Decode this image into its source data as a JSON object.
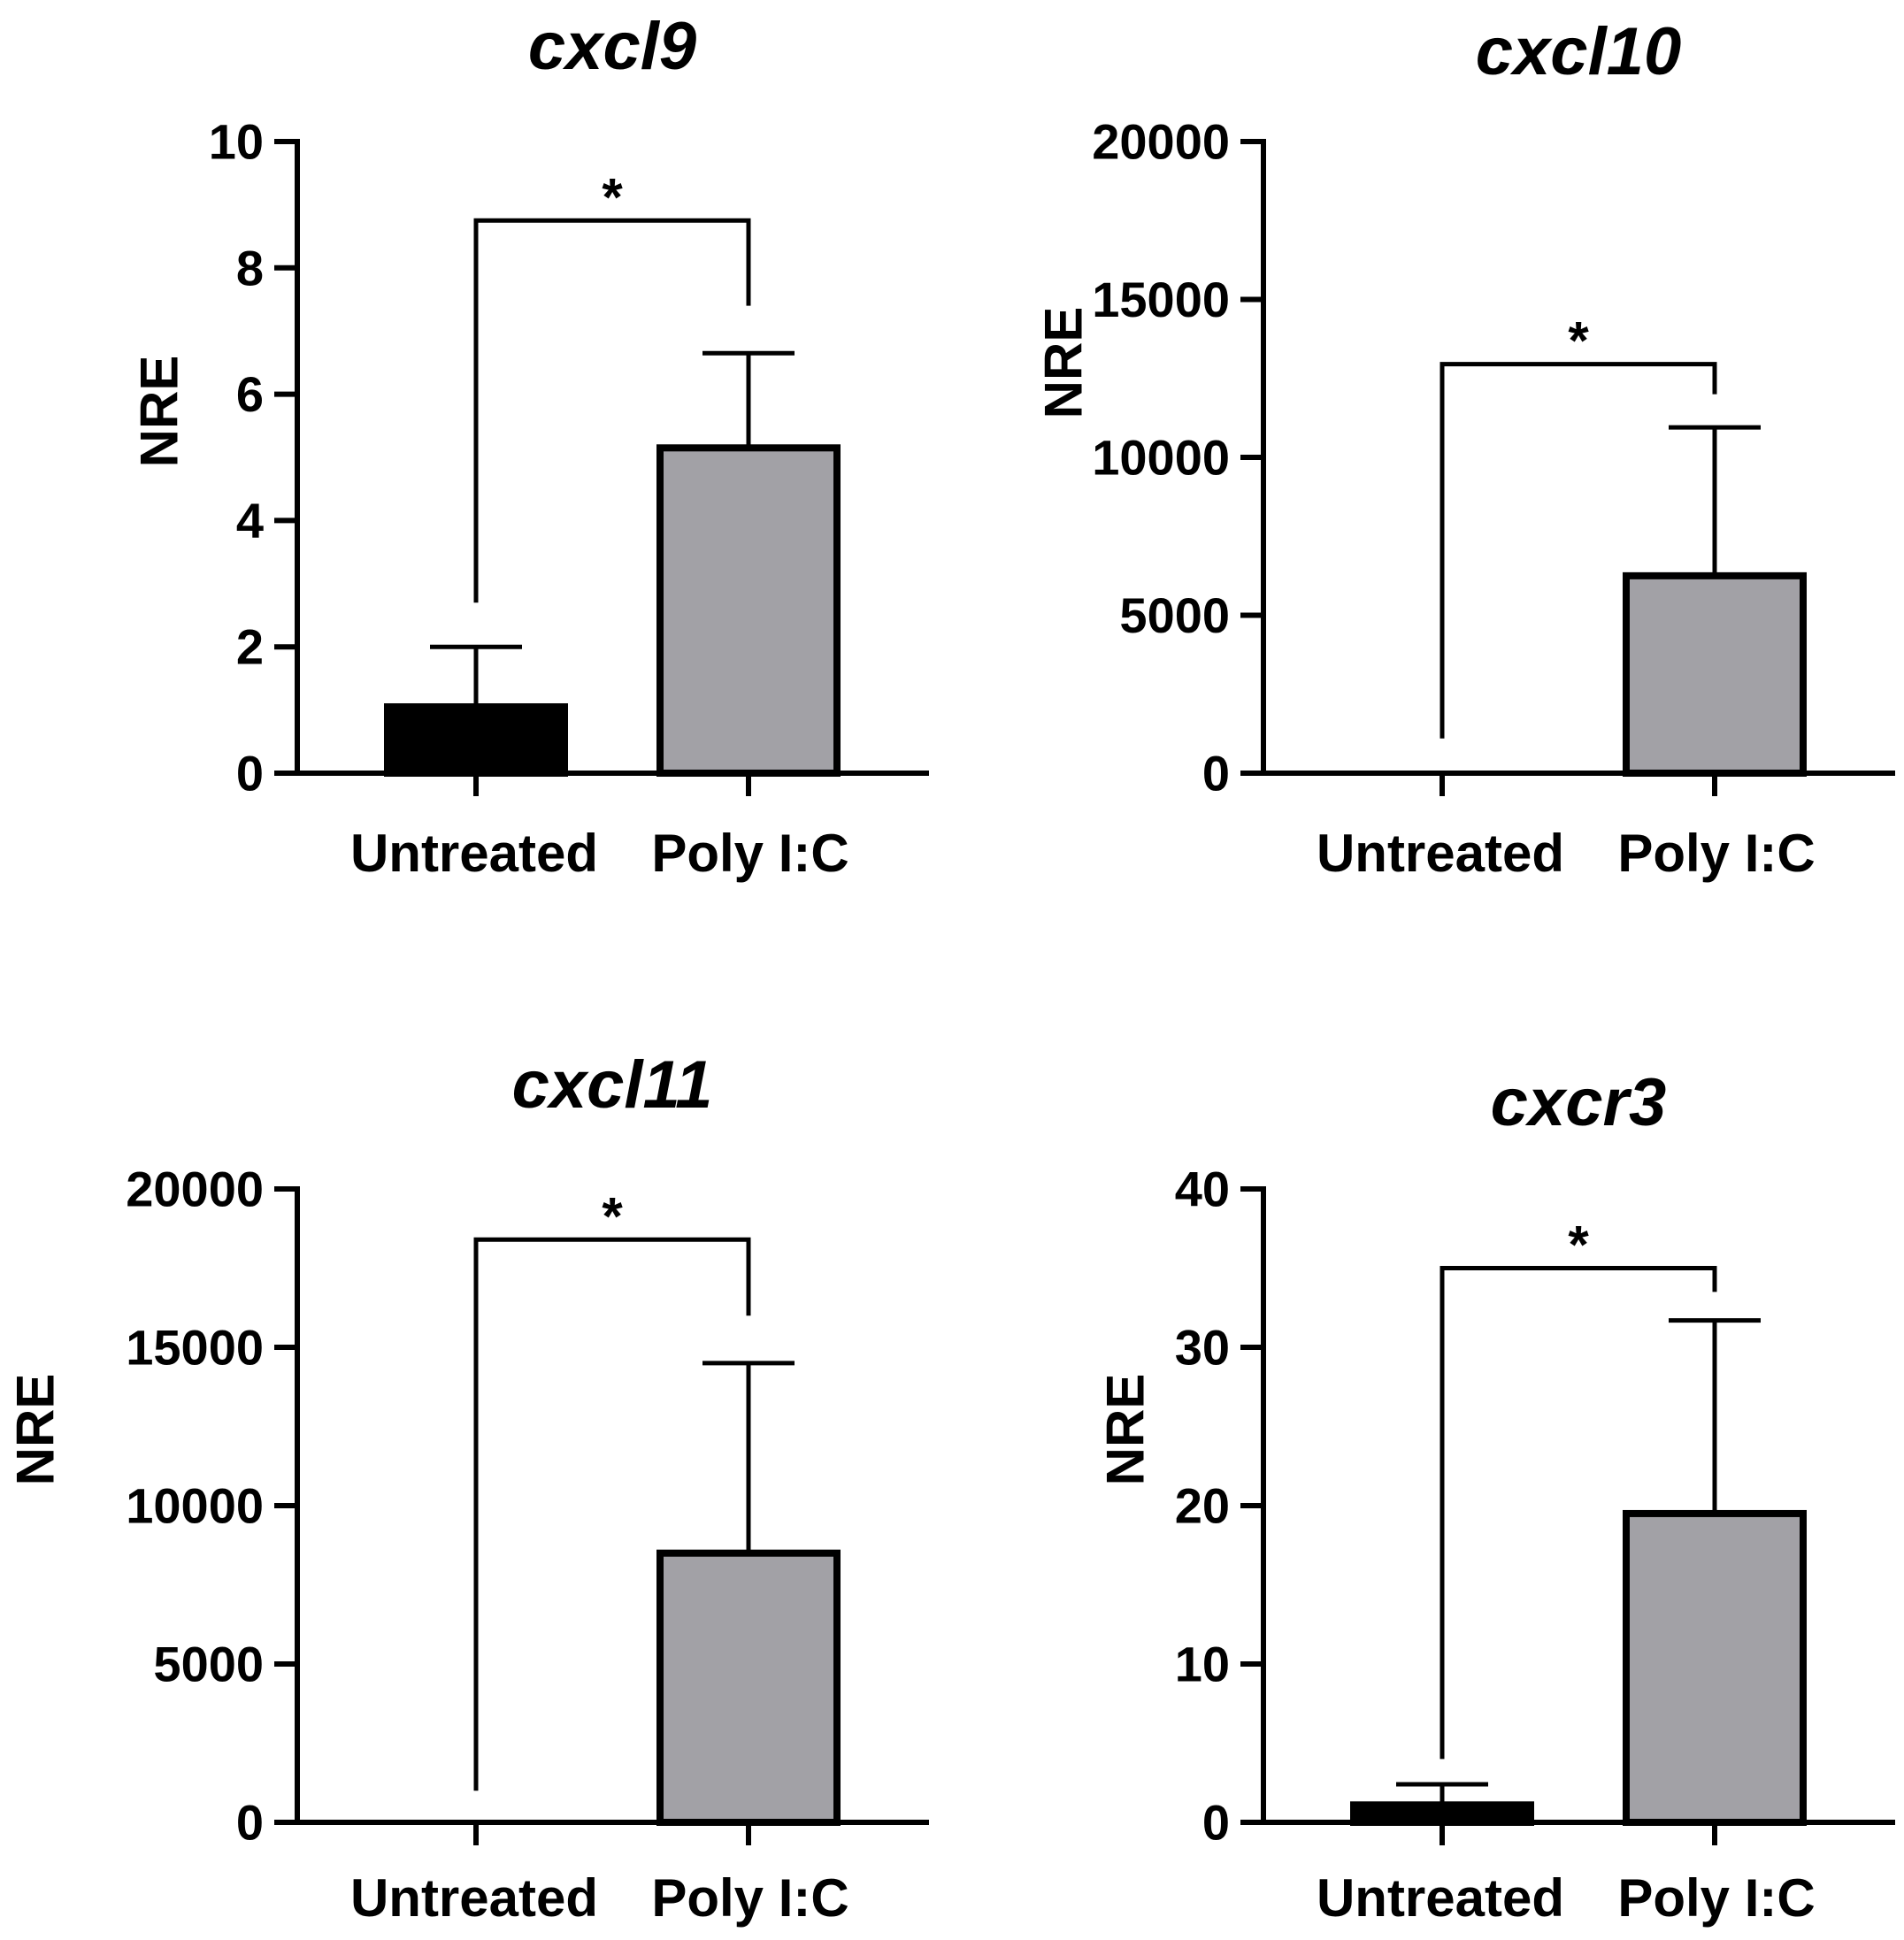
{
  "chart_data": [
    {
      "type": "bar",
      "title": "cxcl9",
      "ylabel": "NRE",
      "xlabel": "",
      "categories": [
        "Untreated",
        "Poly I:C"
      ],
      "values": [
        1.05,
        5.15
      ],
      "error_upper": [
        2.0,
        6.65
      ],
      "ylim": [
        0,
        10
      ],
      "yticks": [
        "0",
        "2",
        "4",
        "6",
        "8",
        "10"
      ],
      "ytick_values": [
        0,
        2,
        4,
        6,
        8,
        10
      ],
      "bar_colors": [
        "#000000",
        "#a2a1a6"
      ],
      "significance": {
        "label": "*",
        "bracket_y": 8.75,
        "left_drop_y": 2.7,
        "right_drop_y": 7.4
      },
      "grid": false
    },
    {
      "type": "bar",
      "title": "cxcl10",
      "ylabel": "NRE",
      "xlabel": "",
      "categories": [
        "Untreated",
        "Poly I:C"
      ],
      "values": [
        0,
        6250
      ],
      "error_upper": [
        0,
        10950
      ],
      "ylim": [
        0,
        20000
      ],
      "yticks": [
        "0",
        "5000",
        "10000",
        "15000",
        "20000"
      ],
      "ytick_values": [
        0,
        5000,
        10000,
        15000,
        20000
      ],
      "bar_colors": [
        "#000000",
        "#a2a1a6"
      ],
      "significance": {
        "label": "*",
        "bracket_y": 12950,
        "left_drop_y": 1100,
        "right_drop_y": 12000
      },
      "grid": false
    },
    {
      "type": "bar",
      "title": "cxcl11",
      "ylabel": "NRE",
      "xlabel": "",
      "categories": [
        "Untreated",
        "Poly I:C"
      ],
      "values": [
        0,
        8500
      ],
      "error_upper": [
        0,
        14500
      ],
      "ylim": [
        0,
        20000
      ],
      "yticks": [
        "0",
        "5000",
        "10000",
        "15000",
        "20000"
      ],
      "ytick_values": [
        0,
        5000,
        10000,
        15000,
        20000
      ],
      "bar_colors": [
        "#000000",
        "#a2a1a6"
      ],
      "significance": {
        "label": "*",
        "bracket_y": 18400,
        "left_drop_y": 1000,
        "right_drop_y": 16000
      },
      "grid": false
    },
    {
      "type": "bar",
      "title": "cxcr3",
      "ylabel": "NRE",
      "xlabel": "",
      "categories": [
        "Untreated",
        "Poly I:C"
      ],
      "values": [
        1.1,
        19.5
      ],
      "error_upper": [
        2.4,
        31.7
      ],
      "ylim": [
        0,
        40
      ],
      "yticks": [
        "0",
        "10",
        "20",
        "30",
        "40"
      ],
      "ytick_values": [
        0,
        10,
        20,
        30,
        40
      ],
      "bar_colors": [
        "#000000",
        "#a2a1a6"
      ],
      "significance": {
        "label": "*",
        "bracket_y": 35.0,
        "left_drop_y": 4.0,
        "right_drop_y": 33.5
      },
      "grid": false
    }
  ]
}
